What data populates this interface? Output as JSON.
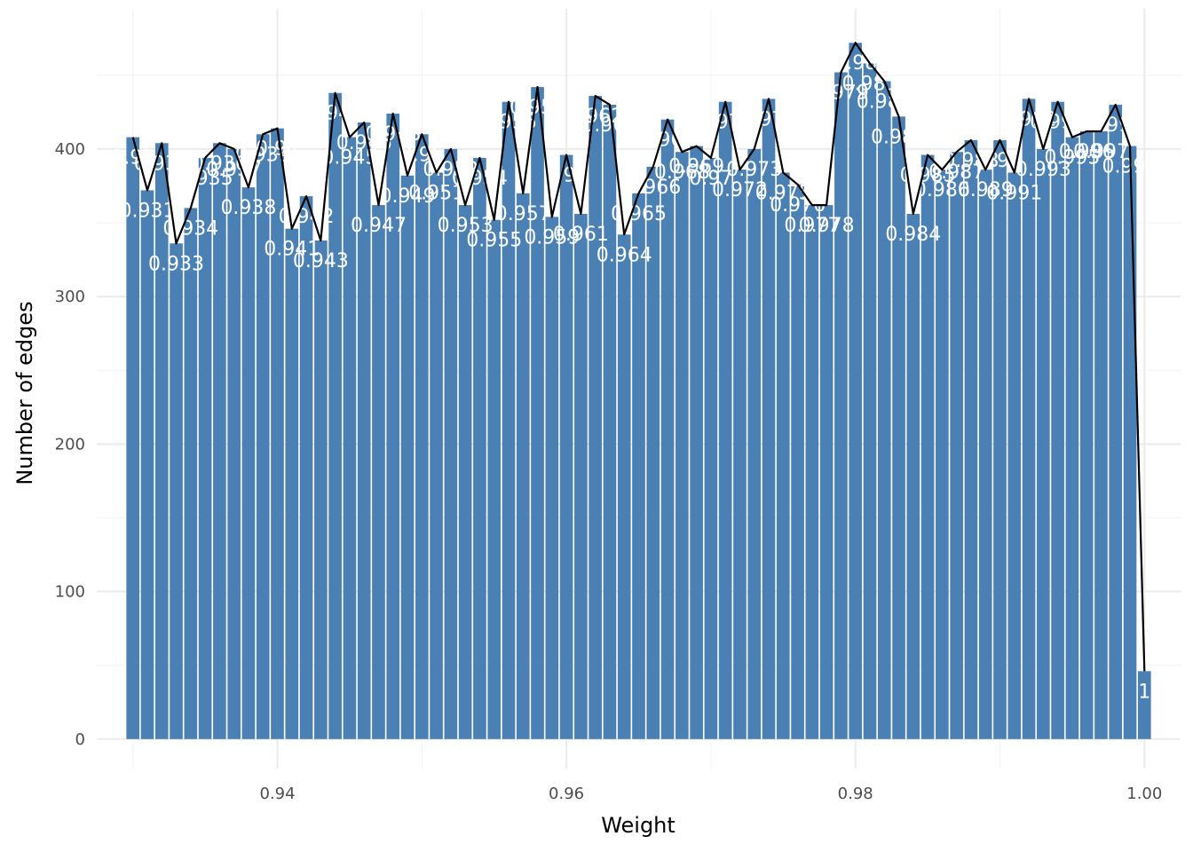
{
  "colors": {
    "bar": "#4a80b3",
    "bar_stroke": "#ffffff",
    "line": "#000000",
    "grid_major": "#ebebeb",
    "grid_minor": "#f4f4f4",
    "background": "#ffffff",
    "label": "#ffffff"
  },
  "chart_data": {
    "type": "bar",
    "title": "",
    "xlabel": "Weight",
    "ylabel": "Number of edges",
    "xlim": [
      0.9275,
      1.0025
    ],
    "ylim": [
      -20,
      495
    ],
    "x_ticks": [
      0.94,
      0.96,
      0.98,
      1.0
    ],
    "x_tick_labels": [
      "0.94",
      "0.96",
      "0.98",
      "1.00"
    ],
    "y_ticks": [
      0,
      100,
      200,
      300,
      400
    ],
    "y_tick_labels": [
      "0",
      "100",
      "200",
      "300",
      "400"
    ],
    "grid": true,
    "legend": "none",
    "overlay_line": true,
    "x": [
      0.93,
      0.931,
      0.932,
      0.933,
      0.934,
      0.935,
      0.936,
      0.937,
      0.938,
      0.939,
      0.94,
      0.941,
      0.942,
      0.943,
      0.944,
      0.945,
      0.946,
      0.947,
      0.948,
      0.949,
      0.95,
      0.951,
      0.952,
      0.953,
      0.954,
      0.955,
      0.956,
      0.957,
      0.958,
      0.959,
      0.96,
      0.961,
      0.962,
      0.963,
      0.964,
      0.965,
      0.966,
      0.967,
      0.968,
      0.969,
      0.97,
      0.971,
      0.972,
      0.973,
      0.974,
      0.975,
      0.976,
      0.977,
      0.978,
      0.979,
      0.98,
      0.981,
      0.982,
      0.983,
      0.984,
      0.985,
      0.986,
      0.987,
      0.988,
      0.989,
      0.99,
      0.991,
      0.992,
      0.993,
      0.994,
      0.995,
      0.996,
      0.997,
      0.998,
      0.999,
      1.0
    ],
    "values": [
      408,
      372,
      404,
      336,
      360,
      394,
      404,
      400,
      374,
      410,
      414,
      346,
      368,
      338,
      438,
      408,
      418,
      362,
      424,
      382,
      410,
      384,
      400,
      362,
      394,
      352,
      432,
      370,
      442,
      354,
      396,
      356,
      436,
      430,
      342,
      370,
      388,
      420,
      398,
      402,
      394,
      432,
      386,
      400,
      434,
      384,
      376,
      362,
      362,
      452,
      472,
      458,
      446,
      422,
      356,
      396,
      386,
      398,
      406,
      386,
      406,
      384,
      434,
      400,
      432,
      408,
      412,
      412,
      430,
      402,
      46
    ],
    "labels": [
      "0.93",
      "0.931",
      "0.932",
      "0.933",
      "0.934",
      "0.935",
      "0.936",
      "0.937",
      "0.938",
      "0.939",
      "0.94",
      "0.941",
      "0.942",
      "0.943",
      "0.944",
      "0.945",
      "0.946",
      "0.947",
      "0.948",
      "0.949",
      "0.95",
      "0.951",
      "0.952",
      "0.953",
      "0.954",
      "0.955",
      "0.956",
      "0.957",
      "0.958",
      "0.959",
      "0.96",
      "0.961",
      "0.962",
      "0.963",
      "0.964",
      "0.965",
      "0.966",
      "0.967",
      "0.968",
      "0.969",
      "0.97",
      "0.971",
      "0.972",
      "0.973",
      "0.974",
      "0.975",
      "0.976",
      "0.977",
      "0.978",
      "0.979",
      "0.98",
      "0.981",
      "0.982",
      "0.983",
      "0.984",
      "0.985",
      "0.986",
      "0.987",
      "0.988",
      "0.989",
      "0.99",
      "0.991",
      "0.992",
      "0.993",
      "0.994",
      "0.995",
      "0.996",
      "0.997",
      "0.998",
      "0.999",
      "1"
    ]
  }
}
